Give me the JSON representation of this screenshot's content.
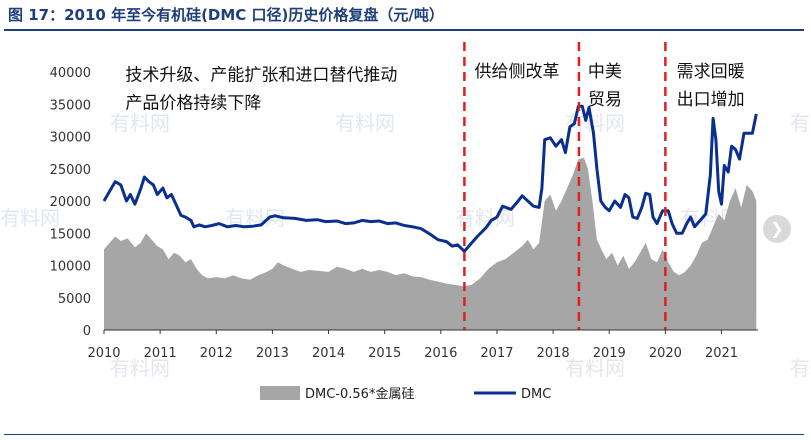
{
  "figure": {
    "title": "图 17：2010 年至今有机硅(DMC 口径)历史价格复盘（元/吨）",
    "watermark": "有料网"
  },
  "colors": {
    "area": "#a6a6a6",
    "line": "#0b2f8f",
    "divider": "#e02020",
    "axis": "#333333",
    "title": "#1f3f7a"
  },
  "chart_data": {
    "type": "line",
    "title": "",
    "xlabel": "",
    "ylabel": "",
    "xlim": [
      2010.0,
      2021.65
    ],
    "ylim": [
      0,
      40000
    ],
    "y_ticks": [
      "0",
      "5000",
      "10000",
      "15000",
      "20000",
      "25000",
      "30000",
      "35000",
      "40000"
    ],
    "x_ticks": [
      "2010",
      "2011",
      "2012",
      "2013",
      "2014",
      "2015",
      "2016",
      "2017",
      "2018",
      "2019",
      "2020",
      "2021"
    ],
    "grid": false,
    "legend_position": "bottom",
    "dividers": [
      2016.42,
      2018.46,
      2020.0
    ],
    "annotations": [
      {
        "lines": [
          "技术升级、产能扩张和进口替代推动",
          "产品价格持续下降"
        ],
        "x": 2010.38,
        "y": 39000
      },
      {
        "lines": [
          "供给侧改革"
        ],
        "x": 2016.6,
        "y": 39500
      },
      {
        "lines": [
          "中美",
          "贸易"
        ],
        "x": 2018.62,
        "y": 39500
      },
      {
        "lines": [
          "需求回暖",
          "出口增加"
        ],
        "x": 2020.2,
        "y": 39500
      }
    ],
    "series": [
      {
        "name": "DMC-0.56*金属硅",
        "kind": "area",
        "points": [
          [
            2010.0,
            12500
          ],
          [
            2010.1,
            13500
          ],
          [
            2010.2,
            14500
          ],
          [
            2010.3,
            13800
          ],
          [
            2010.42,
            14200
          ],
          [
            2010.55,
            12800
          ],
          [
            2010.65,
            13500
          ],
          [
            2010.75,
            15000
          ],
          [
            2010.85,
            14000
          ],
          [
            2010.95,
            13000
          ],
          [
            2011.05,
            12500
          ],
          [
            2011.15,
            11000
          ],
          [
            2011.25,
            12000
          ],
          [
            2011.35,
            11500
          ],
          [
            2011.45,
            10500
          ],
          [
            2011.55,
            11000
          ],
          [
            2011.65,
            9500
          ],
          [
            2011.75,
            8500
          ],
          [
            2011.85,
            8000
          ],
          [
            2012.0,
            8200
          ],
          [
            2012.15,
            8000
          ],
          [
            2012.3,
            8500
          ],
          [
            2012.45,
            8000
          ],
          [
            2012.6,
            7800
          ],
          [
            2012.75,
            8500
          ],
          [
            2012.9,
            9000
          ],
          [
            2013.0,
            9500
          ],
          [
            2013.1,
            10500
          ],
          [
            2013.2,
            10000
          ],
          [
            2013.35,
            9500
          ],
          [
            2013.5,
            9000
          ],
          [
            2013.65,
            9300
          ],
          [
            2013.8,
            9200
          ],
          [
            2014.0,
            9000
          ],
          [
            2014.15,
            9800
          ],
          [
            2014.3,
            9500
          ],
          [
            2014.45,
            9000
          ],
          [
            2014.6,
            9500
          ],
          [
            2014.75,
            9000
          ],
          [
            2014.9,
            9300
          ],
          [
            2015.05,
            9000
          ],
          [
            2015.2,
            8500
          ],
          [
            2015.35,
            8800
          ],
          [
            2015.5,
            8300
          ],
          [
            2015.65,
            8200
          ],
          [
            2015.8,
            7800
          ],
          [
            2015.95,
            7500
          ],
          [
            2016.1,
            7200
          ],
          [
            2016.25,
            7000
          ],
          [
            2016.4,
            6800
          ],
          [
            2016.55,
            7000
          ],
          [
            2016.7,
            8000
          ],
          [
            2016.85,
            9500
          ],
          [
            2017.0,
            10500
          ],
          [
            2017.15,
            11000
          ],
          [
            2017.3,
            12000
          ],
          [
            2017.45,
            13000
          ],
          [
            2017.55,
            14000
          ],
          [
            2017.65,
            12500
          ],
          [
            2017.75,
            13500
          ],
          [
            2017.85,
            20000
          ],
          [
            2017.95,
            21000
          ],
          [
            2018.05,
            18500
          ],
          [
            2018.15,
            20000
          ],
          [
            2018.25,
            22000
          ],
          [
            2018.35,
            24000
          ],
          [
            2018.45,
            26500
          ],
          [
            2018.55,
            26700
          ],
          [
            2018.62,
            25000
          ],
          [
            2018.7,
            20000
          ],
          [
            2018.78,
            14000
          ],
          [
            2018.86,
            12500
          ],
          [
            2018.95,
            11000
          ],
          [
            2019.05,
            12000
          ],
          [
            2019.15,
            10000
          ],
          [
            2019.25,
            11500
          ],
          [
            2019.35,
            9500
          ],
          [
            2019.45,
            10500
          ],
          [
            2019.55,
            12000
          ],
          [
            2019.65,
            13500
          ],
          [
            2019.75,
            11000
          ],
          [
            2019.85,
            10500
          ],
          [
            2019.95,
            12500
          ],
          [
            2020.05,
            10500
          ],
          [
            2020.15,
            9000
          ],
          [
            2020.25,
            8500
          ],
          [
            2020.35,
            9000
          ],
          [
            2020.45,
            10000
          ],
          [
            2020.55,
            11500
          ],
          [
            2020.65,
            13500
          ],
          [
            2020.75,
            14000
          ],
          [
            2020.85,
            16000
          ],
          [
            2020.95,
            18000
          ],
          [
            2021.05,
            17000
          ],
          [
            2021.15,
            20000
          ],
          [
            2021.25,
            22000
          ],
          [
            2021.35,
            19000
          ],
          [
            2021.45,
            22500
          ],
          [
            2021.55,
            21500
          ],
          [
            2021.62,
            20000
          ]
        ]
      },
      {
        "name": "DMC",
        "kind": "line",
        "points": [
          [
            2010.0,
            20000
          ],
          [
            2010.1,
            21500
          ],
          [
            2010.2,
            23000
          ],
          [
            2010.3,
            22500
          ],
          [
            2010.4,
            20000
          ],
          [
            2010.47,
            21000
          ],
          [
            2010.55,
            19500
          ],
          [
            2010.65,
            21800
          ],
          [
            2010.72,
            23700
          ],
          [
            2010.8,
            23000
          ],
          [
            2010.88,
            22500
          ],
          [
            2010.95,
            21000
          ],
          [
            2011.05,
            22000
          ],
          [
            2011.12,
            20500
          ],
          [
            2011.2,
            21000
          ],
          [
            2011.28,
            19500
          ],
          [
            2011.37,
            17800
          ],
          [
            2011.45,
            17500
          ],
          [
            2011.55,
            17000
          ],
          [
            2011.6,
            16000
          ],
          [
            2011.7,
            16300
          ],
          [
            2011.8,
            16000
          ],
          [
            2011.92,
            16200
          ],
          [
            2012.05,
            16500
          ],
          [
            2012.2,
            16000
          ],
          [
            2012.35,
            16200
          ],
          [
            2012.5,
            16000
          ],
          [
            2012.65,
            16100
          ],
          [
            2012.8,
            16300
          ],
          [
            2012.95,
            17500
          ],
          [
            2013.05,
            17700
          ],
          [
            2013.2,
            17400
          ],
          [
            2013.4,
            17300
          ],
          [
            2013.6,
            17000
          ],
          [
            2013.8,
            17100
          ],
          [
            2013.95,
            16800
          ],
          [
            2014.15,
            16900
          ],
          [
            2014.3,
            16500
          ],
          [
            2014.45,
            16600
          ],
          [
            2014.6,
            17000
          ],
          [
            2014.75,
            16800
          ],
          [
            2014.9,
            16900
          ],
          [
            2015.05,
            16500
          ],
          [
            2015.2,
            16600
          ],
          [
            2015.35,
            16200
          ],
          [
            2015.5,
            16000
          ],
          [
            2015.65,
            15700
          ],
          [
            2015.8,
            14900
          ],
          [
            2015.95,
            14000
          ],
          [
            2016.1,
            13700
          ],
          [
            2016.2,
            13000
          ],
          [
            2016.3,
            13200
          ],
          [
            2016.42,
            12200
          ],
          [
            2016.55,
            13500
          ],
          [
            2016.65,
            14500
          ],
          [
            2016.8,
            15800
          ],
          [
            2016.9,
            17000
          ],
          [
            2017.0,
            17500
          ],
          [
            2017.1,
            19200
          ],
          [
            2017.25,
            18700
          ],
          [
            2017.35,
            19700
          ],
          [
            2017.45,
            20800
          ],
          [
            2017.55,
            20000
          ],
          [
            2017.65,
            19200
          ],
          [
            2017.75,
            19000
          ],
          [
            2017.8,
            22000
          ],
          [
            2017.85,
            29500
          ],
          [
            2017.95,
            29800
          ],
          [
            2018.05,
            28500
          ],
          [
            2018.15,
            29500
          ],
          [
            2018.22,
            27500
          ],
          [
            2018.3,
            31500
          ],
          [
            2018.38,
            32000
          ],
          [
            2018.45,
            34700
          ],
          [
            2018.52,
            34700
          ],
          [
            2018.58,
            32500
          ],
          [
            2018.64,
            34500
          ],
          [
            2018.72,
            30500
          ],
          [
            2018.78,
            25000
          ],
          [
            2018.85,
            20000
          ],
          [
            2018.93,
            19000
          ],
          [
            2019.0,
            18500
          ],
          [
            2019.1,
            20000
          ],
          [
            2019.2,
            19000
          ],
          [
            2019.28,
            21000
          ],
          [
            2019.35,
            20500
          ],
          [
            2019.42,
            17500
          ],
          [
            2019.5,
            17300
          ],
          [
            2019.58,
            19000
          ],
          [
            2019.65,
            21200
          ],
          [
            2019.72,
            21000
          ],
          [
            2019.78,
            17500
          ],
          [
            2019.85,
            16500
          ],
          [
            2019.95,
            18500
          ],
          [
            2020.05,
            18500
          ],
          [
            2020.12,
            16500
          ],
          [
            2020.2,
            15000
          ],
          [
            2020.3,
            15000
          ],
          [
            2020.38,
            16500
          ],
          [
            2020.45,
            17500
          ],
          [
            2020.52,
            16000
          ],
          [
            2020.62,
            17000
          ],
          [
            2020.72,
            18000
          ],
          [
            2020.8,
            24000
          ],
          [
            2020.85,
            32800
          ],
          [
            2020.9,
            29500
          ],
          [
            2020.95,
            21500
          ],
          [
            2021.0,
            19500
          ],
          [
            2021.05,
            25500
          ],
          [
            2021.12,
            24500
          ],
          [
            2021.18,
            28500
          ],
          [
            2021.25,
            28000
          ],
          [
            2021.32,
            26500
          ],
          [
            2021.4,
            30500
          ],
          [
            2021.48,
            30500
          ],
          [
            2021.55,
            30500
          ],
          [
            2021.62,
            33500
          ]
        ]
      }
    ]
  }
}
